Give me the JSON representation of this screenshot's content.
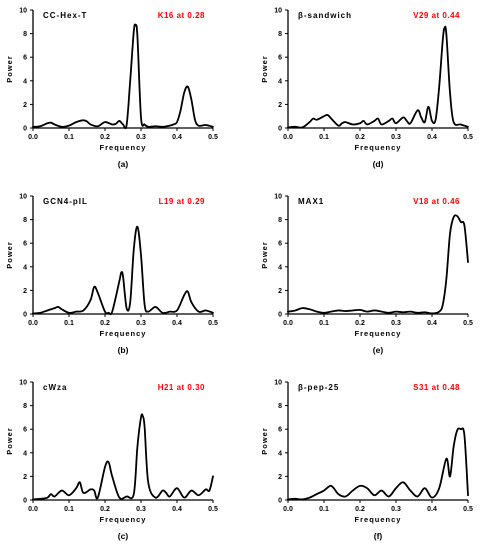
{
  "chart_data": [
    {
      "type": "line",
      "caption": "(a)",
      "title": "CC-Hex-T",
      "annotation": "K16 at 0.28",
      "xlabel": "Frequency",
      "ylabel": "Power",
      "xlim": [
        0,
        0.5
      ],
      "ylim": [
        0,
        10
      ],
      "x_ticks": [
        "0.0",
        "0.1",
        "0.2",
        "0.3",
        "0.4",
        "0.5"
      ],
      "y_ticks": [
        "0",
        "2",
        "4",
        "6",
        "8",
        "10"
      ],
      "x": [
        0,
        0.02,
        0.04,
        0.05,
        0.06,
        0.08,
        0.1,
        0.12,
        0.14,
        0.15,
        0.16,
        0.18,
        0.2,
        0.22,
        0.23,
        0.24,
        0.25,
        0.26,
        0.27,
        0.28,
        0.285,
        0.29,
        0.3,
        0.31,
        0.32,
        0.34,
        0.36,
        0.38,
        0.39,
        0.4,
        0.41,
        0.42,
        0.43,
        0.44,
        0.45,
        0.46,
        0.48,
        0.5
      ],
      "y": [
        0.1,
        0.15,
        0.4,
        0.45,
        0.3,
        0.1,
        0.2,
        0.5,
        0.65,
        0.55,
        0.3,
        0.15,
        0.5,
        0.3,
        0.35,
        0.6,
        0.3,
        0.25,
        4.0,
        8.2,
        8.7,
        7.8,
        0.9,
        0.3,
        0.1,
        0.15,
        0.1,
        0.2,
        0.3,
        0.5,
        1.5,
        3.0,
        3.5,
        2.4,
        0.7,
        0.2,
        0.25,
        0.1
      ]
    },
    {
      "type": "line",
      "caption": "(d)",
      "title": "β-sandwich",
      "annotation": "V29 at 0.44",
      "xlabel": "Frequency",
      "ylabel": "Power",
      "xlim": [
        0,
        0.5
      ],
      "ylim": [
        0,
        10
      ],
      "x_ticks": [
        "0.0",
        "0.1",
        "0.2",
        "0.3",
        "0.4",
        "0.5"
      ],
      "y_ticks": [
        "0",
        "2",
        "4",
        "6",
        "8",
        "10"
      ],
      "x": [
        0,
        0.02,
        0.04,
        0.06,
        0.07,
        0.08,
        0.1,
        0.11,
        0.12,
        0.14,
        0.15,
        0.16,
        0.18,
        0.2,
        0.21,
        0.22,
        0.24,
        0.25,
        0.26,
        0.28,
        0.29,
        0.3,
        0.32,
        0.33,
        0.34,
        0.36,
        0.37,
        0.38,
        0.39,
        0.4,
        0.41,
        0.42,
        0.43,
        0.435,
        0.44,
        0.45,
        0.46,
        0.48,
        0.5
      ],
      "y": [
        0.05,
        0.1,
        0.05,
        0.5,
        0.8,
        0.7,
        1.0,
        1.1,
        0.8,
        0.2,
        0.4,
        0.5,
        0.3,
        0.4,
        0.6,
        0.3,
        0.6,
        0.8,
        0.3,
        0.6,
        0.8,
        0.4,
        0.9,
        0.6,
        0.4,
        1.5,
        0.9,
        0.5,
        1.8,
        0.6,
        0.7,
        3.5,
        7.5,
        8.5,
        7.9,
        3.0,
        0.5,
        0.3,
        0.1
      ]
    },
    {
      "type": "line",
      "caption": "(b)",
      "title": "GCN4-pIL",
      "annotation": "L19 at 0.29",
      "xlabel": "Frequency",
      "ylabel": "Power",
      "xlim": [
        0,
        0.5
      ],
      "ylim": [
        0,
        10
      ],
      "x_ticks": [
        "0.0",
        "0.1",
        "0.2",
        "0.3",
        "0.4",
        "0.5"
      ],
      "y_ticks": [
        "0",
        "2",
        "4",
        "6",
        "8",
        "10"
      ],
      "x": [
        0,
        0.02,
        0.04,
        0.06,
        0.07,
        0.08,
        0.1,
        0.12,
        0.14,
        0.16,
        0.17,
        0.18,
        0.2,
        0.21,
        0.22,
        0.24,
        0.245,
        0.25,
        0.26,
        0.27,
        0.28,
        0.29,
        0.3,
        0.31,
        0.32,
        0.34,
        0.36,
        0.38,
        0.4,
        0.42,
        0.43,
        0.44,
        0.46,
        0.48,
        0.5
      ],
      "y": [
        0.05,
        0.1,
        0.3,
        0.5,
        0.6,
        0.4,
        0.1,
        0.2,
        0.3,
        1.2,
        2.3,
        1.8,
        0.2,
        0.1,
        0.2,
        2.8,
        3.5,
        3.2,
        0.5,
        1.0,
        5.5,
        7.4,
        5.0,
        0.8,
        0.2,
        0.6,
        0.1,
        0.2,
        0.3,
        1.6,
        1.9,
        1.0,
        0.2,
        0.3,
        0.1
      ]
    },
    {
      "type": "line",
      "caption": "(e)",
      "title": "MAX1",
      "annotation": "V18 at 0.46",
      "xlabel": "Frequency",
      "ylabel": "Power",
      "xlim": [
        0,
        0.5
      ],
      "ylim": [
        0,
        10
      ],
      "x_ticks": [
        "0.0",
        "0.1",
        "0.2",
        "0.3",
        "0.4",
        "0.5"
      ],
      "y_ticks": [
        "0",
        "2",
        "4",
        "6",
        "8",
        "10"
      ],
      "x": [
        0,
        0.02,
        0.04,
        0.06,
        0.08,
        0.1,
        0.12,
        0.14,
        0.16,
        0.18,
        0.2,
        0.22,
        0.24,
        0.26,
        0.28,
        0.3,
        0.32,
        0.34,
        0.36,
        0.38,
        0.4,
        0.42,
        0.43,
        0.44,
        0.45,
        0.46,
        0.47,
        0.48,
        0.49,
        0.5
      ],
      "y": [
        0.2,
        0.3,
        0.5,
        0.4,
        0.2,
        0.1,
        0.2,
        0.3,
        0.25,
        0.3,
        0.35,
        0.2,
        0.3,
        0.2,
        0.1,
        0.2,
        0.15,
        0.2,
        0.1,
        0.15,
        0.05,
        0.2,
        0.8,
        3.0,
        6.8,
        8.2,
        8.3,
        7.8,
        7.5,
        4.4
      ]
    },
    {
      "type": "line",
      "caption": "(c)",
      "title": "cWza",
      "annotation": "H21 at 0.30",
      "xlabel": "Frequency",
      "ylabel": "Power",
      "xlim": [
        0,
        0.5
      ],
      "ylim": [
        0,
        10
      ],
      "x_ticks": [
        "0.0",
        "0.1",
        "0.2",
        "0.3",
        "0.4",
        "0.5"
      ],
      "y_ticks": [
        "0",
        "2",
        "4",
        "6",
        "8",
        "10"
      ],
      "x": [
        0,
        0.02,
        0.04,
        0.05,
        0.06,
        0.08,
        0.1,
        0.12,
        0.13,
        0.14,
        0.16,
        0.17,
        0.18,
        0.2,
        0.21,
        0.22,
        0.24,
        0.26,
        0.28,
        0.29,
        0.3,
        0.305,
        0.31,
        0.32,
        0.34,
        0.36,
        0.37,
        0.38,
        0.4,
        0.42,
        0.44,
        0.46,
        0.48,
        0.49,
        0.5
      ],
      "y": [
        0.05,
        0.1,
        0.2,
        0.5,
        0.3,
        0.8,
        0.4,
        1.0,
        1.5,
        0.6,
        0.9,
        0.8,
        0.2,
        2.8,
        3.2,
        2.0,
        0.2,
        0.3,
        0.5,
        4.5,
        7.0,
        7.1,
        6.2,
        1.5,
        0.2,
        0.8,
        0.6,
        0.3,
        1.0,
        0.2,
        0.8,
        0.4,
        0.9,
        0.8,
        2.0
      ]
    },
    {
      "type": "line",
      "caption": "(f)",
      "title": "β-pep-25",
      "annotation": "S31 at 0.48",
      "xlabel": "Frequency",
      "ylabel": "Power",
      "xlim": [
        0,
        0.5
      ],
      "ylim": [
        0,
        10
      ],
      "x_ticks": [
        "0.0",
        "0.1",
        "0.2",
        "0.3",
        "0.4",
        "0.5"
      ],
      "y_ticks": [
        "0",
        "2",
        "4",
        "6",
        "8",
        "10"
      ],
      "x": [
        0,
        0.02,
        0.04,
        0.06,
        0.08,
        0.1,
        0.12,
        0.14,
        0.16,
        0.18,
        0.2,
        0.22,
        0.24,
        0.26,
        0.28,
        0.3,
        0.32,
        0.34,
        0.36,
        0.38,
        0.4,
        0.42,
        0.44,
        0.45,
        0.46,
        0.47,
        0.48,
        0.49,
        0.5
      ],
      "y": [
        0.05,
        0.1,
        0.05,
        0.2,
        0.5,
        0.8,
        1.2,
        0.5,
        0.3,
        0.8,
        1.2,
        1.0,
        0.4,
        0.8,
        0.3,
        1.0,
        1.5,
        0.8,
        0.3,
        1.0,
        0.2,
        1.0,
        3.5,
        2.0,
        4.5,
        5.9,
        6.0,
        5.5,
        0.4
      ]
    }
  ]
}
